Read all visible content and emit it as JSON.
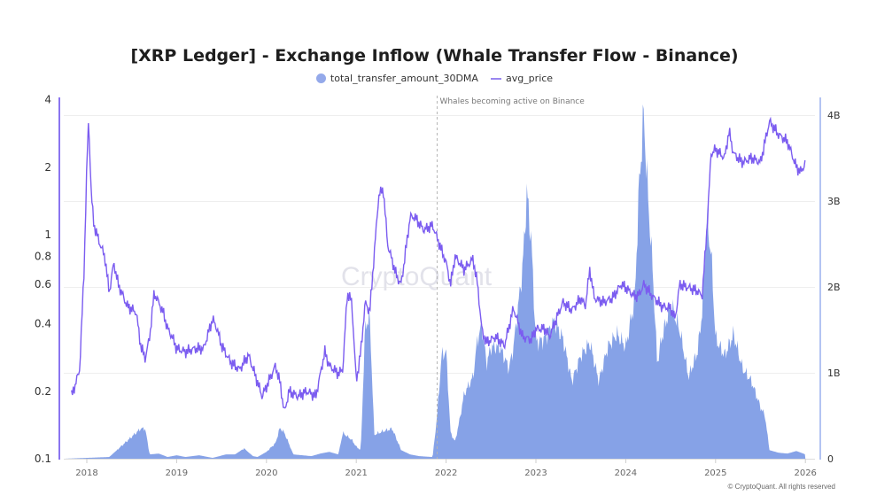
{
  "title": "[XRP Ledger] - Exchange Inflow (Whale Transfer Flow - Binance)",
  "legend": [
    {
      "label": "total_transfer_amount_30DMA",
      "type": "dot",
      "color": "#94a9ea"
    },
    {
      "label": "avg_price",
      "type": "line",
      "color": "#9a86f0"
    }
  ],
  "watermark": "CryptoQuant",
  "copyright": "© CryptoQuant. All rights reserved",
  "annotation": {
    "label": "Whales becoming active on Binance",
    "date": 2021.9
  },
  "colors": {
    "bars": "#7f9de6",
    "line": "#7b5cf0",
    "left_axis": "#8a74f0",
    "right_axis": "#9ab0ee",
    "grid": "#eeeeee"
  },
  "chart_data": {
    "type": "bar+line",
    "title": "[XRP Ledger] - Exchange Inflow (Whale Transfer Flow - Binance)",
    "x_ticks": [
      "2018",
      "2019",
      "2020",
      "2021",
      "2022",
      "2023",
      "2024",
      "2025",
      "2026"
    ],
    "left_axis": {
      "label": "avg_price",
      "scale": "log",
      "ticks": [
        "0.1",
        "0.2",
        "0.4",
        "0.6",
        "0.8",
        "1",
        "2",
        "4"
      ],
      "range": [
        0.1,
        4
      ]
    },
    "right_axis": {
      "label": "total_transfer_amount_30DMA",
      "scale": "linear",
      "ticks": [
        "0",
        "1B",
        "2B",
        "3B",
        "4B"
      ],
      "range": [
        0,
        4.2
      ]
    },
    "legend_position": "top",
    "grid": true,
    "series": [
      {
        "name": "total_transfer_amount_30DMA",
        "type": "bar",
        "unit": "B",
        "points": [
          [
            2017.75,
            0
          ],
          [
            2018.25,
            0.02
          ],
          [
            2018.6,
            0.35
          ],
          [
            2018.65,
            0.35
          ],
          [
            2018.7,
            0.05
          ],
          [
            2018.8,
            0.06
          ],
          [
            2018.9,
            0.02
          ],
          [
            2019.0,
            0.04
          ],
          [
            2019.1,
            0.02
          ],
          [
            2019.25,
            0.04
          ],
          [
            2019.4,
            0.01
          ],
          [
            2019.55,
            0.05
          ],
          [
            2019.65,
            0.05
          ],
          [
            2019.75,
            0.12
          ],
          [
            2019.85,
            0.03
          ],
          [
            2019.9,
            0.02
          ],
          [
            2019.95,
            0.05
          ],
          [
            2020.0,
            0.08
          ],
          [
            2020.1,
            0.18
          ],
          [
            2020.15,
            0.36
          ],
          [
            2020.2,
            0.3
          ],
          [
            2020.3,
            0.05
          ],
          [
            2020.5,
            0.03
          ],
          [
            2020.6,
            0.06
          ],
          [
            2020.7,
            0.08
          ],
          [
            2020.8,
            0.05
          ],
          [
            2020.85,
            0.3
          ],
          [
            2020.9,
            0.26
          ],
          [
            2020.95,
            0.22
          ],
          [
            2021.0,
            0.14
          ],
          [
            2021.05,
            0.1
          ],
          [
            2021.1,
            1.55
          ],
          [
            2021.15,
            1.65
          ],
          [
            2021.2,
            0.28
          ],
          [
            2021.3,
            0.32
          ],
          [
            2021.4,
            0.35
          ],
          [
            2021.5,
            0.1
          ],
          [
            2021.6,
            0.05
          ],
          [
            2021.7,
            0.03
          ],
          [
            2021.85,
            0.02
          ],
          [
            2021.9,
            0.5
          ],
          [
            2021.95,
            1.2
          ],
          [
            2022.0,
            1.25
          ],
          [
            2022.05,
            0.3
          ],
          [
            2022.1,
            0.2
          ],
          [
            2022.15,
            0.45
          ],
          [
            2022.2,
            0.75
          ],
          [
            2022.3,
            0.95
          ],
          [
            2022.35,
            1.4
          ],
          [
            2022.4,
            1.55
          ],
          [
            2022.45,
            1.1
          ],
          [
            2022.5,
            1.3
          ],
          [
            2022.6,
            1.3
          ],
          [
            2022.7,
            1.05
          ],
          [
            2022.75,
            1.3
          ],
          [
            2022.85,
            2.2
          ],
          [
            2022.9,
            3.1
          ],
          [
            2022.95,
            2.5
          ],
          [
            2023.0,
            1.35
          ],
          [
            2023.1,
            1.4
          ],
          [
            2023.2,
            1.6
          ],
          [
            2023.3,
            1.4
          ],
          [
            2023.4,
            0.9
          ],
          [
            2023.5,
            1.2
          ],
          [
            2023.6,
            1.35
          ],
          [
            2023.7,
            0.9
          ],
          [
            2023.8,
            1.3
          ],
          [
            2023.9,
            1.45
          ],
          [
            2024.0,
            1.3
          ],
          [
            2024.1,
            1.85
          ],
          [
            2024.15,
            3.2
          ],
          [
            2024.2,
            4.0
          ],
          [
            2024.25,
            3.0
          ],
          [
            2024.3,
            2.2
          ],
          [
            2024.35,
            1.1
          ],
          [
            2024.4,
            1.4
          ],
          [
            2024.5,
            1.8
          ],
          [
            2024.6,
            1.5
          ],
          [
            2024.7,
            0.95
          ],
          [
            2024.8,
            1.25
          ],
          [
            2024.85,
            1.7
          ],
          [
            2024.9,
            2.8
          ],
          [
            2024.95,
            2.4
          ],
          [
            2025.0,
            1.4
          ],
          [
            2025.1,
            1.2
          ],
          [
            2025.2,
            1.45
          ],
          [
            2025.3,
            1.05
          ],
          [
            2025.4,
            0.9
          ],
          [
            2025.5,
            0.6
          ],
          [
            2025.55,
            0.5
          ],
          [
            2025.6,
            0.1
          ],
          [
            2025.7,
            0.07
          ],
          [
            2025.8,
            0.06
          ],
          [
            2025.9,
            0.09
          ],
          [
            2026.0,
            0.05
          ]
        ]
      },
      {
        "name": "avg_price",
        "type": "line",
        "unit": "USD",
        "points": [
          [
            2017.83,
            0.19
          ],
          [
            2017.88,
            0.22
          ],
          [
            2017.92,
            0.25
          ],
          [
            2017.97,
            0.7
          ],
          [
            2018.0,
            2.0
          ],
          [
            2018.02,
            3.3
          ],
          [
            2018.05,
            1.5
          ],
          [
            2018.08,
            1.1
          ],
          [
            2018.15,
            0.9
          ],
          [
            2018.2,
            0.8
          ],
          [
            2018.25,
            0.55
          ],
          [
            2018.3,
            0.75
          ],
          [
            2018.35,
            0.6
          ],
          [
            2018.45,
            0.48
          ],
          [
            2018.55,
            0.45
          ],
          [
            2018.6,
            0.32
          ],
          [
            2018.65,
            0.28
          ],
          [
            2018.7,
            0.35
          ],
          [
            2018.75,
            0.55
          ],
          [
            2018.85,
            0.45
          ],
          [
            2018.9,
            0.38
          ],
          [
            2018.95,
            0.35
          ],
          [
            2019.0,
            0.31
          ],
          [
            2019.1,
            0.3
          ],
          [
            2019.2,
            0.31
          ],
          [
            2019.3,
            0.31
          ],
          [
            2019.4,
            0.42
          ],
          [
            2019.45,
            0.38
          ],
          [
            2019.5,
            0.32
          ],
          [
            2019.6,
            0.27
          ],
          [
            2019.7,
            0.25
          ],
          [
            2019.8,
            0.29
          ],
          [
            2019.9,
            0.22
          ],
          [
            2019.95,
            0.19
          ],
          [
            2020.0,
            0.21
          ],
          [
            2020.1,
            0.26
          ],
          [
            2020.15,
            0.22
          ],
          [
            2020.2,
            0.16
          ],
          [
            2020.25,
            0.2
          ],
          [
            2020.35,
            0.19
          ],
          [
            2020.45,
            0.2
          ],
          [
            2020.55,
            0.19
          ],
          [
            2020.65,
            0.3
          ],
          [
            2020.7,
            0.26
          ],
          [
            2020.8,
            0.24
          ],
          [
            2020.85,
            0.25
          ],
          [
            2020.9,
            0.55
          ],
          [
            2020.95,
            0.5
          ],
          [
            2021.0,
            0.22
          ],
          [
            2021.05,
            0.3
          ],
          [
            2021.1,
            0.5
          ],
          [
            2021.15,
            0.45
          ],
          [
            2021.25,
            1.5
          ],
          [
            2021.3,
            1.6
          ],
          [
            2021.35,
            0.9
          ],
          [
            2021.45,
            0.65
          ],
          [
            2021.5,
            0.6
          ],
          [
            2021.6,
            1.2
          ],
          [
            2021.65,
            1.2
          ],
          [
            2021.75,
            1.05
          ],
          [
            2021.85,
            1.1
          ],
          [
            2021.95,
            0.85
          ],
          [
            2022.0,
            0.75
          ],
          [
            2022.05,
            0.6
          ],
          [
            2022.1,
            0.8
          ],
          [
            2022.2,
            0.7
          ],
          [
            2022.3,
            0.78
          ],
          [
            2022.35,
            0.6
          ],
          [
            2022.4,
            0.37
          ],
          [
            2022.45,
            0.33
          ],
          [
            2022.55,
            0.35
          ],
          [
            2022.65,
            0.32
          ],
          [
            2022.75,
            0.47
          ],
          [
            2022.85,
            0.35
          ],
          [
            2022.95,
            0.34
          ],
          [
            2023.0,
            0.38
          ],
          [
            2023.1,
            0.38
          ],
          [
            2023.15,
            0.35
          ],
          [
            2023.3,
            0.5
          ],
          [
            2023.4,
            0.46
          ],
          [
            2023.5,
            0.52
          ],
          [
            2023.55,
            0.48
          ],
          [
            2023.6,
            0.7
          ],
          [
            2023.65,
            0.52
          ],
          [
            2023.75,
            0.5
          ],
          [
            2023.85,
            0.52
          ],
          [
            2023.95,
            0.6
          ],
          [
            2024.0,
            0.58
          ],
          [
            2024.1,
            0.53
          ],
          [
            2024.15,
            0.54
          ],
          [
            2024.2,
            0.6
          ],
          [
            2024.3,
            0.53
          ],
          [
            2024.4,
            0.48
          ],
          [
            2024.5,
            0.47
          ],
          [
            2024.55,
            0.42
          ],
          [
            2024.6,
            0.6
          ],
          [
            2024.7,
            0.58
          ],
          [
            2024.8,
            0.56
          ],
          [
            2024.85,
            0.53
          ],
          [
            2024.9,
            1.0
          ],
          [
            2024.95,
            2.3
          ],
          [
            2025.0,
            2.4
          ],
          [
            2025.1,
            2.2
          ],
          [
            2025.15,
            2.9
          ],
          [
            2025.2,
            2.3
          ],
          [
            2025.3,
            2.1
          ],
          [
            2025.4,
            2.2
          ],
          [
            2025.5,
            2.1
          ],
          [
            2025.6,
            3.2
          ],
          [
            2025.7,
            2.8
          ],
          [
            2025.8,
            2.6
          ],
          [
            2025.9,
            2.0
          ],
          [
            2025.95,
            1.9
          ],
          [
            2026.0,
            2.1
          ]
        ]
      }
    ]
  }
}
